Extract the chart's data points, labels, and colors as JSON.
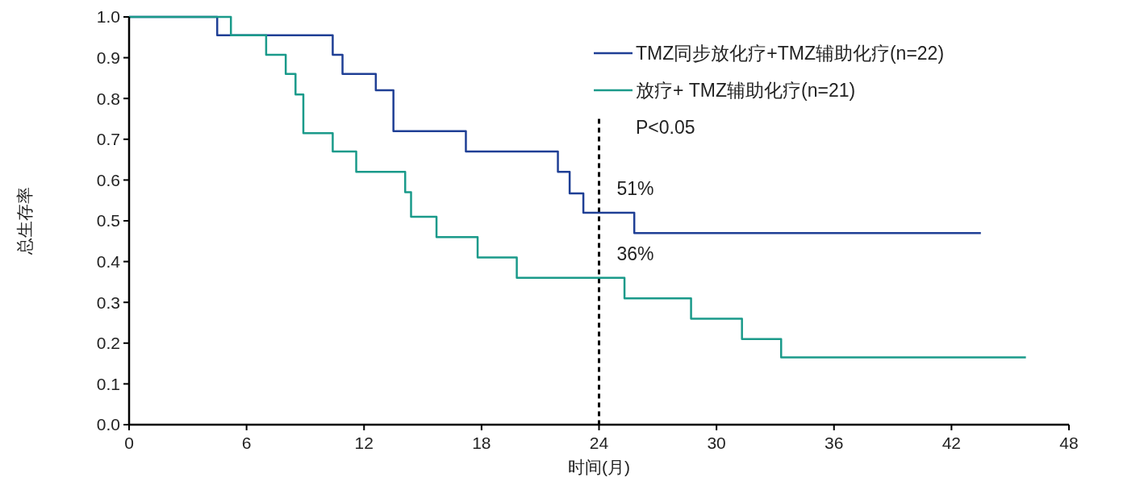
{
  "chart_data": {
    "type": "step",
    "xlabel": "时间(月)",
    "ylabel": "总生存率",
    "xlim": [
      0,
      48
    ],
    "xticks": [
      0,
      6,
      12,
      18,
      24,
      30,
      36,
      42,
      48
    ],
    "ylim": [
      0,
      1
    ],
    "yticks": [
      {
        "value": 0,
        "label": "0.0"
      },
      0.1,
      0.2,
      0.3,
      0.4,
      0.5,
      0.6,
      0.7,
      0.8,
      0.9,
      {
        "value": 1,
        "label": "1.0"
      }
    ],
    "series": [
      {
        "name": "TMZ同步放化疗+TMZ辅助化疗(n=22)",
        "color": "#1f3f95",
        "x": [
          0,
          4.5,
          10.4,
          10.9,
          12.6,
          13.5,
          17.2,
          21.9,
          22.5,
          23.2,
          25.8,
          43.5
        ],
        "values": [
          1,
          0.955,
          0.907,
          0.86,
          0.82,
          0.72,
          0.67,
          0.62,
          0.567,
          0.52,
          0.47,
          0.47
        ]
      },
      {
        "name": "放疗+ TMZ辅助化疗(n=21)",
        "color": "#1a9a8a",
        "x": [
          0,
          5.2,
          7.0,
          8.0,
          8.5,
          8.9,
          10.4,
          11.6,
          14.1,
          14.4,
          15.7,
          17.8,
          19.8,
          25.3,
          28.7,
          31.3,
          33.3,
          45.8
        ],
        "values": [
          1,
          0.955,
          0.907,
          0.86,
          0.81,
          0.715,
          0.67,
          0.62,
          0.57,
          0.51,
          0.46,
          0.41,
          0.36,
          0.31,
          0.26,
          0.21,
          0.165,
          0.165
        ]
      }
    ],
    "ref_lines": [
      {
        "axis": "x",
        "value": 24,
        "color": "#000000",
        "line_style": "dashed"
      }
    ],
    "annotations": [
      {
        "text": "51%",
        "x": 24,
        "y": 0.52
      },
      {
        "text": "36%",
        "x": 24,
        "y": 0.36
      },
      "P<0.05"
    ],
    "legend": "top right",
    "line_style": "solid",
    "marker": "none"
  }
}
